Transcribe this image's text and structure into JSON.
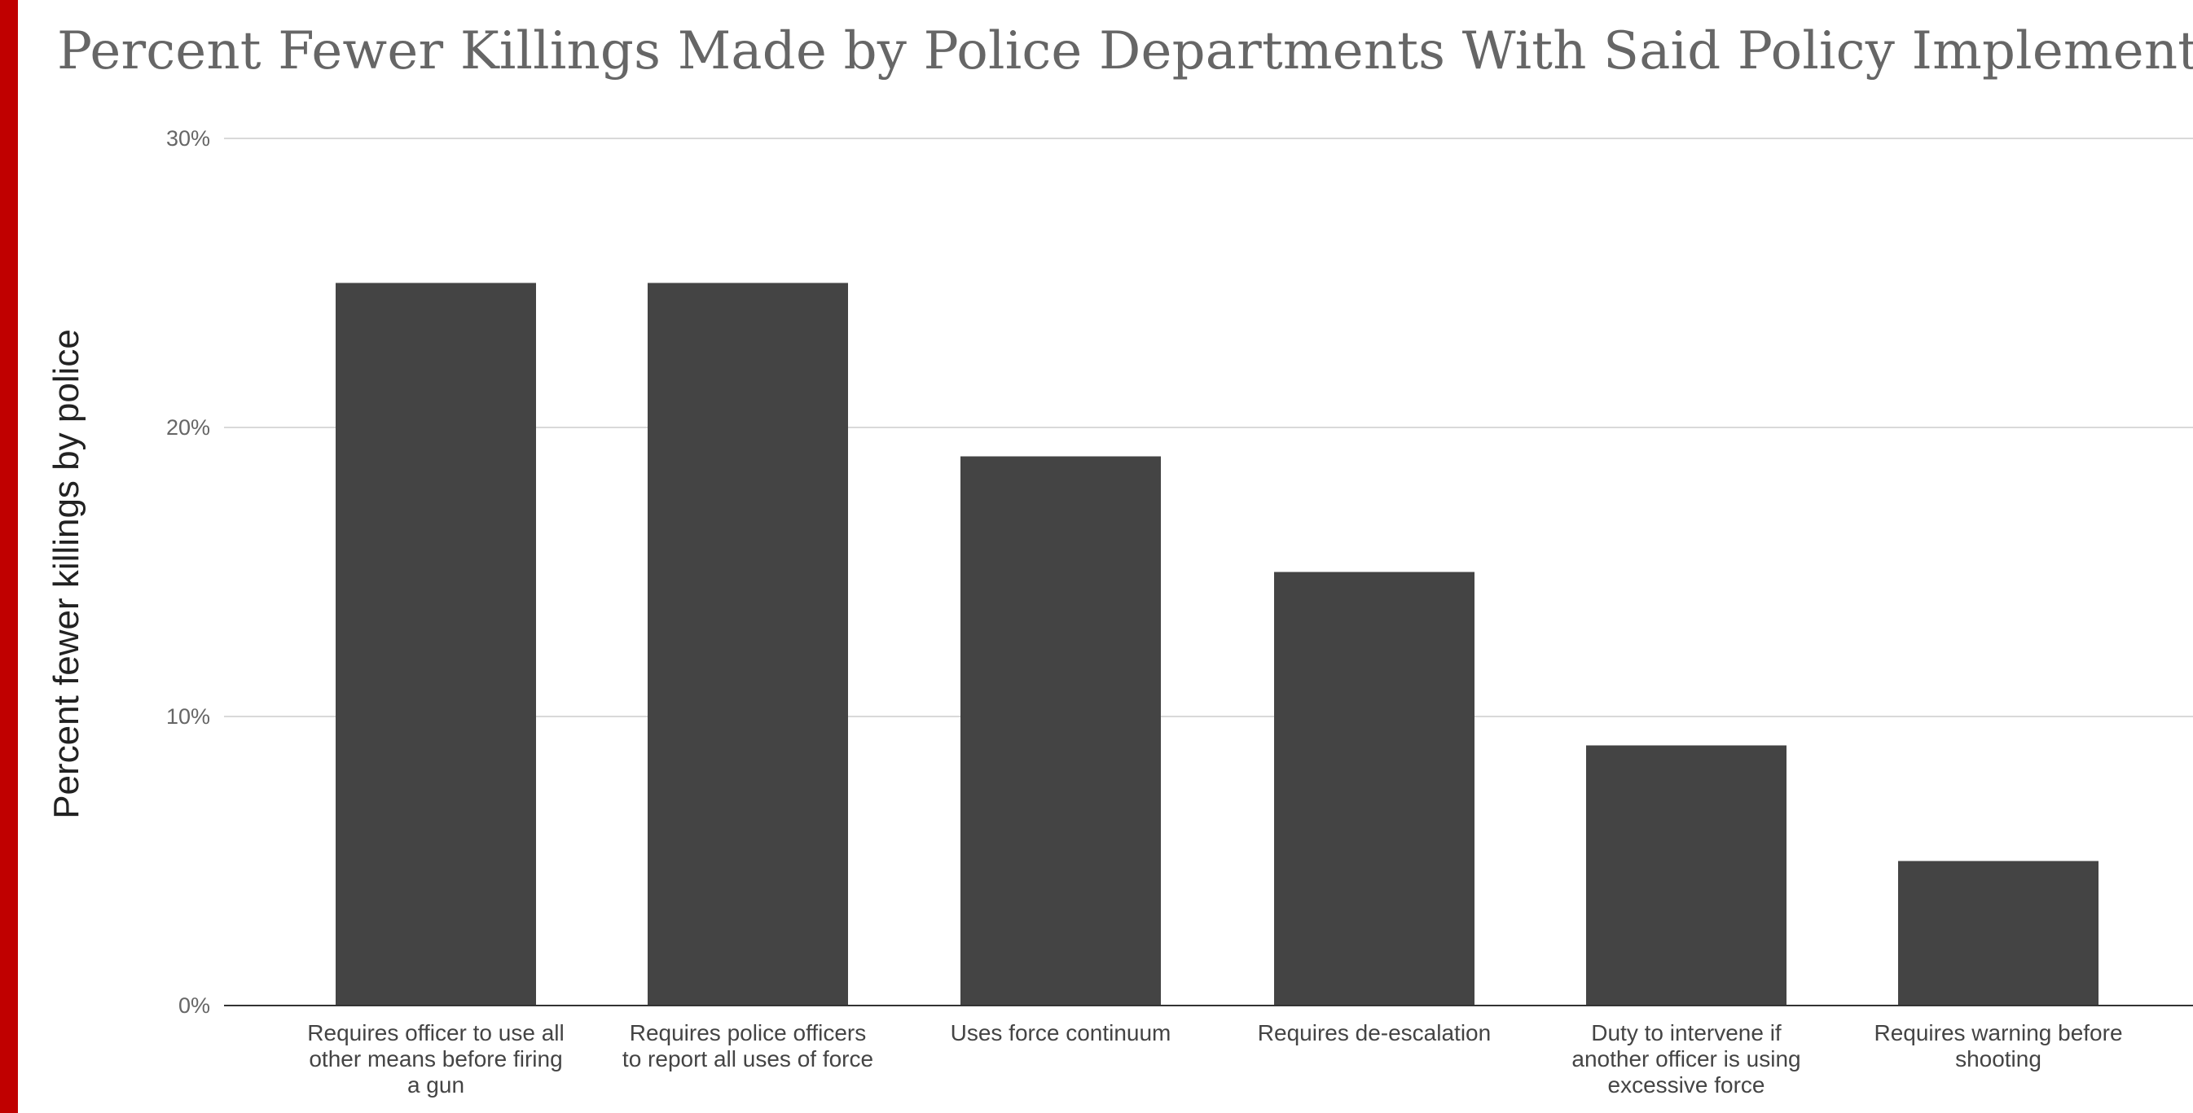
{
  "theme": {
    "accent": "#c00000",
    "bar": "#444444",
    "grid": "#d9d9d9",
    "axis": "#333333"
  },
  "chart_data": {
    "type": "bar",
    "title": "Percent Fewer Killings Made by Police Departments With Said Policy Implemented",
    "xlabel": "",
    "ylabel": "Percent fewer killings by police",
    "ylim": [
      0,
      30
    ],
    "yticks": [
      0,
      10,
      20,
      30
    ],
    "ytick_labels": [
      "0%",
      "10%",
      "20%",
      "30%"
    ],
    "grid": true,
    "categories": [
      [
        "Requires officer to use all",
        "other means before firing",
        "a gun"
      ],
      [
        "Requires police officers",
        "to report all uses of force"
      ],
      [
        "Uses force continuum"
      ],
      [
        "Requires de-escalation"
      ],
      [
        "Duty to intervene if",
        "another officer is using",
        "excessive force"
      ],
      [
        "Requires warning before",
        "shooting"
      ]
    ],
    "values": [
      25,
      25,
      19,
      15,
      9,
      5
    ]
  }
}
